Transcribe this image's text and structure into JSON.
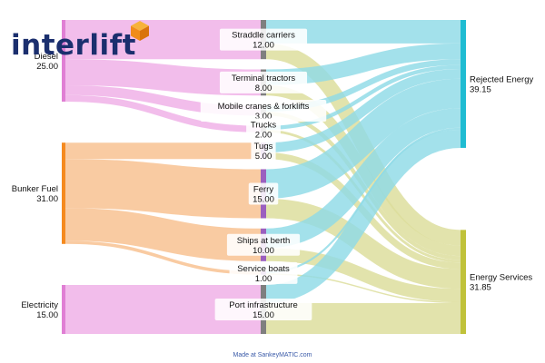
{
  "logo": {
    "text": "interlift",
    "brand_color": "#1b2f6e",
    "accent_color": "#f39c1e"
  },
  "footer": {
    "text": "Made at SankeyMATIC.com"
  },
  "chart_data": {
    "type": "sankey",
    "title": "",
    "nodes": [
      {
        "id": "diesel",
        "name": "Diesel",
        "value_label": "25.00",
        "value": 25,
        "column": 0,
        "color": "#e07fd4",
        "flow_color": "#efaee6"
      },
      {
        "id": "bunker",
        "name": "Bunker Fuel",
        "value_label": "31.00",
        "value": 31,
        "column": 0,
        "color": "#f58a1f",
        "flow_color": "#f8bf8d"
      },
      {
        "id": "elec",
        "name": "Electricity",
        "value_label": "15.00",
        "value": 15,
        "column": 0,
        "color": "#e07fd4",
        "flow_color": "#efaee6"
      },
      {
        "id": "straddle",
        "name": "Straddle carriers",
        "value_label": "12.00",
        "value": 12,
        "column": 1,
        "color": "#7f7f7f"
      },
      {
        "id": "terminal",
        "name": "Terminal tractors",
        "value_label": "8.00",
        "value": 8,
        "column": 1,
        "color": "#7f7f7f"
      },
      {
        "id": "mobile",
        "name": "Mobile cranes & forklifts",
        "value_label": "3.00",
        "value": 3,
        "column": 1,
        "color": "#7f7f7f"
      },
      {
        "id": "trucks",
        "name": "Trucks",
        "value_label": "2.00",
        "value": 2,
        "column": 1,
        "color": "#7f7f7f"
      },
      {
        "id": "tugs",
        "name": "Tugs",
        "value_label": "5.00",
        "value": 5,
        "column": 1,
        "color": "#9b5fbf"
      },
      {
        "id": "ferry",
        "name": "Ferry",
        "value_label": "15.00",
        "value": 15,
        "column": 1,
        "color": "#9b5fbf"
      },
      {
        "id": "ships",
        "name": "Ships at berth",
        "value_label": "10.00",
        "value": 10,
        "column": 1,
        "color": "#9b5fbf"
      },
      {
        "id": "service",
        "name": "Service boats",
        "value_label": "1.00",
        "value": 1,
        "column": 1,
        "color": "#9b5fbf"
      },
      {
        "id": "port",
        "name": "Port infrastructure",
        "value_label": "15.00",
        "value": 15,
        "column": 1,
        "color": "#7f7f7f"
      },
      {
        "id": "rejected",
        "name": "Rejected Energy",
        "value_label": "39.15",
        "value": 39.15,
        "column": 2,
        "color": "#1fbcd2"
      },
      {
        "id": "services",
        "name": "Energy Services",
        "value_label": "31.85",
        "value": 31.85,
        "column": 2,
        "color": "#c0c23a"
      }
    ],
    "links": [
      {
        "source": "diesel",
        "target": "straddle",
        "value": 12
      },
      {
        "source": "diesel",
        "target": "terminal",
        "value": 8
      },
      {
        "source": "diesel",
        "target": "mobile",
        "value": 3
      },
      {
        "source": "diesel",
        "target": "trucks",
        "value": 2
      },
      {
        "source": "bunker",
        "target": "tugs",
        "value": 5
      },
      {
        "source": "bunker",
        "target": "ferry",
        "value": 15
      },
      {
        "source": "bunker",
        "target": "ships",
        "value": 10
      },
      {
        "source": "bunker",
        "target": "service",
        "value": 1
      },
      {
        "source": "elec",
        "target": "port",
        "value": 15
      },
      {
        "source": "straddle",
        "target": "rejected",
        "value": 7.2
      },
      {
        "source": "straddle",
        "target": "services",
        "value": 4.8
      },
      {
        "source": "terminal",
        "target": "rejected",
        "value": 4.8
      },
      {
        "source": "terminal",
        "target": "services",
        "value": 3.2
      },
      {
        "source": "mobile",
        "target": "rejected",
        "value": 1.8
      },
      {
        "source": "mobile",
        "target": "services",
        "value": 1.2
      },
      {
        "source": "trucks",
        "target": "rejected",
        "value": 1.2
      },
      {
        "source": "trucks",
        "target": "services",
        "value": 0.8
      },
      {
        "source": "tugs",
        "target": "rejected",
        "value": 3
      },
      {
        "source": "tugs",
        "target": "services",
        "value": 2
      },
      {
        "source": "ferry",
        "target": "rejected",
        "value": 9
      },
      {
        "source": "ferry",
        "target": "services",
        "value": 6
      },
      {
        "source": "ships",
        "target": "rejected",
        "value": 6
      },
      {
        "source": "ships",
        "target": "services",
        "value": 4
      },
      {
        "source": "service",
        "target": "rejected",
        "value": 0.6
      },
      {
        "source": "service",
        "target": "services",
        "value": 0.4
      },
      {
        "source": "port",
        "target": "rejected",
        "value": 5.55
      },
      {
        "source": "port",
        "target": "services",
        "value": 9.45
      }
    ],
    "target_flow_colors": {
      "rejected": "#8fdbe6",
      "services": "#dcdd9a"
    }
  }
}
